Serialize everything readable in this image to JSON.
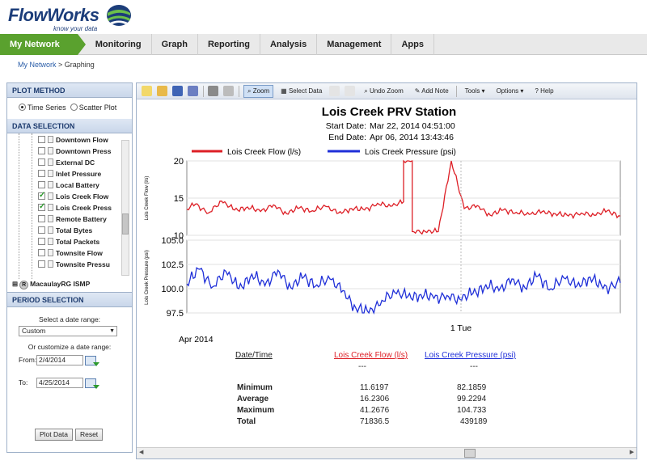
{
  "brand": {
    "name": "FlowWorks",
    "tagline": "know your data",
    "colors": {
      "nav_active": "#5aa12e",
      "logo": "#1c3d7a"
    }
  },
  "nav": {
    "items": [
      "My Network",
      "Monitoring",
      "Graph",
      "Reporting",
      "Analysis",
      "Management",
      "Apps"
    ],
    "active": "My Network"
  },
  "breadcrumb": {
    "root": "My Network",
    "separator": " > ",
    "current": "Graphing"
  },
  "plot_method": {
    "title": "PLOT METHOD",
    "options": [
      "Time Series",
      "Scatter Plot"
    ],
    "selected": "Time Series"
  },
  "data_selection": {
    "title": "DATA SELECTION",
    "items": [
      {
        "label": "Downtown Flow",
        "checked": false
      },
      {
        "label": "Downtown Press",
        "checked": false
      },
      {
        "label": "External DC",
        "checked": false
      },
      {
        "label": "Inlet Pressure",
        "checked": false
      },
      {
        "label": "Local Battery",
        "checked": false
      },
      {
        "label": "Lois Creek Flow",
        "checked": true
      },
      {
        "label": "Lois Creek Press",
        "checked": true
      },
      {
        "label": "Remote Battery",
        "checked": false
      },
      {
        "label": "Total Bytes",
        "checked": false
      },
      {
        "label": "Total Packets",
        "checked": false
      },
      {
        "label": "Townsite Flow",
        "checked": false
      },
      {
        "label": "Townsite Pressu",
        "checked": false
      }
    ],
    "group": {
      "badge": "R",
      "label": "MacaulayRG ISMP"
    }
  },
  "period_selection": {
    "title": "PERIOD SELECTION",
    "range_label": "Select a date range:",
    "range_value": "Custom",
    "custom_label": "Or customize a date range:",
    "from_label": "From:",
    "from_value": "2/4/2014",
    "to_label": "To:",
    "to_value": "4/25/2014",
    "plot_button": "Plot Data",
    "reset_button": "Reset"
  },
  "toolbar": {
    "zoom": "Zoom",
    "select_data": "Select Data",
    "undo_zoom": "Undo Zoom",
    "add_note": "Add Note",
    "tools": "Tools",
    "options": "Options",
    "help": "Help"
  },
  "chart": {
    "title": "Lois Creek PRV Station",
    "start_label": "Start Date:",
    "start_value": "Mar 22, 2014 04:51:00",
    "end_label": "End Date:",
    "end_value": "Apr 06, 2014 13:43:46",
    "x_label_left": "Apr 2014",
    "x_tick_label": "1 Tue",
    "colors": {
      "flow": "#dd1f26",
      "pressure": "#1f2fd8"
    }
  },
  "chart_data": {
    "type": "line",
    "title": "Lois Creek PRV Station",
    "series": [
      {
        "name": "Lois Creek Flow (l/s)",
        "ylabel": "Lois Creek Flow (l/s)",
        "ylim": [
          10,
          20
        ],
        "yticks": [
          10,
          15,
          20
        ],
        "x": [
          0,
          0.02,
          0.05,
          0.08,
          0.11,
          0.14,
          0.17,
          0.2,
          0.23,
          0.26,
          0.29,
          0.32,
          0.35,
          0.38,
          0.41,
          0.44,
          0.47,
          0.5,
          0.5,
          0.52,
          0.52,
          0.55,
          0.58,
          0.61,
          0.64,
          0.67,
          0.7,
          0.73,
          0.76,
          0.79,
          0.82,
          0.85,
          0.88,
          0.91,
          0.94,
          0.97,
          1.0
        ],
        "values": [
          13.5,
          14.2,
          13.0,
          14.6,
          13.4,
          13.8,
          13.2,
          14.1,
          12.9,
          13.7,
          13.3,
          13.9,
          13.0,
          13.6,
          13.4,
          14.3,
          13.9,
          14.5,
          20,
          20,
          10.5,
          10.5,
          10.5,
          20,
          13.6,
          14.0,
          12.7,
          13.4,
          13.1,
          12.8,
          13.2,
          12.9,
          12.6,
          13.0,
          12.7,
          13.3,
          12.6
        ]
      },
      {
        "name": "Lois Creek Pressure (psi)",
        "ylabel": "Lois Creek Pressure (psi)",
        "ylim": [
          97.5,
          105.0
        ],
        "yticks": [
          97.5,
          100.0,
          102.5,
          105.0
        ],
        "x": [
          0,
          0.03,
          0.06,
          0.09,
          0.12,
          0.15,
          0.18,
          0.21,
          0.24,
          0.27,
          0.3,
          0.33,
          0.36,
          0.39,
          0.42,
          0.45,
          0.48,
          0.51,
          0.54,
          0.57,
          0.6,
          0.63,
          0.66,
          0.69,
          0.72,
          0.75,
          0.78,
          0.81,
          0.84,
          0.87,
          0.9,
          0.93,
          0.96,
          1.0
        ],
        "values": [
          100.5,
          102.0,
          100.2,
          101.8,
          100.0,
          101.5,
          100.3,
          101.9,
          100.1,
          101.2,
          100.4,
          101.0,
          99.8,
          98.0,
          97.4,
          98.8,
          99.6,
          99.2,
          99.4,
          99.0,
          99.3,
          98.9,
          99.5,
          100.4,
          99.8,
          101.0,
          100.1,
          101.3,
          100.0,
          101.1,
          100.3,
          101.2,
          100.0,
          100.6
        ]
      }
    ],
    "legend": "top-left"
  },
  "stats": {
    "headers": {
      "date": "Date/Time",
      "flow": "Lois Creek Flow (l/s)",
      "pressure": "Lois Creek Pressure (psi)"
    },
    "placeholder": "---",
    "rows": [
      {
        "label": "Minimum",
        "flow": "11.6197",
        "pressure": "82.1859"
      },
      {
        "label": "Average",
        "flow": "16.2306",
        "pressure": "99.2294"
      },
      {
        "label": "Maximum",
        "flow": "41.2676",
        "pressure": "104.733"
      },
      {
        "label": "Total",
        "flow": "71836.5",
        "pressure": "439189"
      }
    ]
  }
}
